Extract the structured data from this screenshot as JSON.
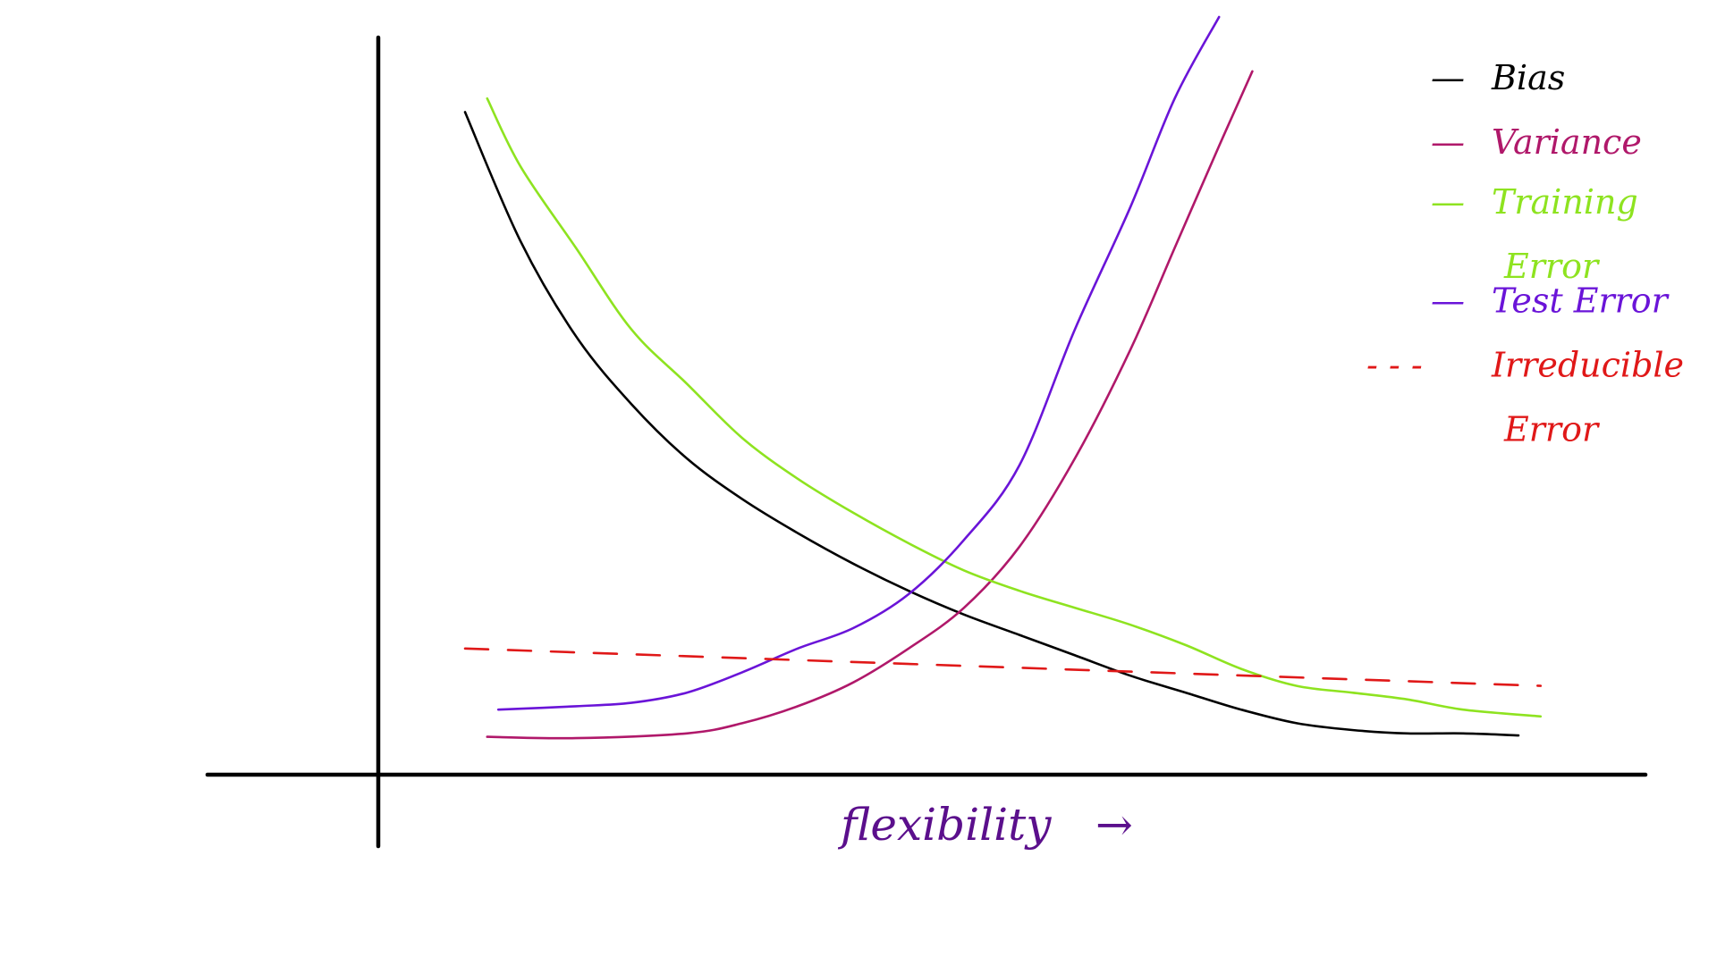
{
  "chart_data": {
    "type": "line",
    "title": "",
    "xlabel": "flexibility",
    "xlabel_arrow": "→",
    "ylabel": "",
    "xlim": [
      0,
      10
    ],
    "ylim": [
      0,
      10
    ],
    "grid": false,
    "legend_position": "top-right",
    "series": [
      {
        "name": "Bias",
        "color": "#000000",
        "dash": "solid",
        "x": [
          0.0,
          0.5,
          1.0,
          1.5,
          2.0,
          2.5,
          3.0,
          3.5,
          4.0,
          4.5,
          5.0,
          5.5,
          6.0,
          6.5,
          7.0,
          7.5,
          8.0,
          8.5,
          9.0,
          9.5
        ],
        "y": [
          9.6,
          7.7,
          6.3,
          5.3,
          4.5,
          3.9,
          3.4,
          2.95,
          2.55,
          2.2,
          1.9,
          1.6,
          1.3,
          1.05,
          0.8,
          0.6,
          0.5,
          0.45,
          0.45,
          0.42
        ]
      },
      {
        "name": "Variance",
        "color": "#b0186a",
        "dash": "solid",
        "x": [
          0.2,
          1.0,
          2.0,
          2.5,
          3.0,
          3.5,
          4.0,
          4.5,
          5.0,
          5.5,
          6.0,
          6.4,
          6.8,
          7.1
        ],
        "y": [
          0.4,
          0.38,
          0.45,
          0.6,
          0.85,
          1.2,
          1.7,
          2.3,
          3.2,
          4.5,
          6.1,
          7.6,
          9.1,
          10.2
        ]
      },
      {
        "name": "Training Error",
        "color": "#8ee320",
        "dash": "solid",
        "x": [
          0.2,
          0.5,
          1.0,
          1.5,
          2.0,
          2.5,
          3.0,
          3.5,
          4.0,
          4.5,
          5.0,
          5.5,
          6.0,
          6.5,
          7.0,
          7.5,
          8.0,
          8.5,
          9.0,
          9.7
        ],
        "y": [
          9.8,
          8.8,
          7.6,
          6.4,
          5.6,
          4.8,
          4.2,
          3.7,
          3.25,
          2.85,
          2.55,
          2.3,
          2.05,
          1.75,
          1.4,
          1.15,
          1.05,
          0.95,
          0.8,
          0.7
        ]
      },
      {
        "name": "Test Error",
        "color": "#6a14d8",
        "dash": "solid",
        "x": [
          0.3,
          1.0,
          1.5,
          2.0,
          2.5,
          3.0,
          3.5,
          4.0,
          4.5,
          5.0,
          5.5,
          6.0,
          6.4,
          6.8
        ],
        "y": [
          0.8,
          0.85,
          0.9,
          1.05,
          1.35,
          1.7,
          2.0,
          2.5,
          3.3,
          4.4,
          6.4,
          8.2,
          9.8,
          11.0
        ]
      },
      {
        "name": "Irreducible Error",
        "color": "#e01818",
        "dash": "dashed",
        "x": [
          0.0,
          9.7
        ],
        "y": [
          1.7,
          1.15
        ]
      }
    ],
    "legend": [
      {
        "marker": "—",
        "label_lines": [
          "Bias"
        ],
        "color": "#000000"
      },
      {
        "marker": "—",
        "label_lines": [
          "Variance"
        ],
        "color": "#b0186a"
      },
      {
        "marker": "—",
        "label_lines": [
          "Training",
          "Error"
        ],
        "color": "#8ee320"
      },
      {
        "marker": "—",
        "label_lines": [
          "Test Error"
        ],
        "color": "#6a14d8"
      },
      {
        "marker": "- - -",
        "label_lines": [
          "Irreducible",
          "Error"
        ],
        "color": "#e01818"
      }
    ],
    "xlabel_color": "#5b0f8c"
  }
}
